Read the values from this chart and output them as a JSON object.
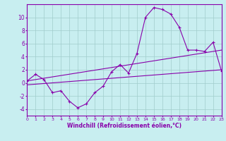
{
  "x": [
    0,
    1,
    2,
    3,
    4,
    5,
    6,
    7,
    8,
    9,
    10,
    11,
    12,
    13,
    14,
    15,
    16,
    17,
    18,
    19,
    20,
    21,
    22,
    23
  ],
  "main_curve": [
    0.3,
    1.3,
    0.5,
    -1.5,
    -1.2,
    -2.8,
    -3.8,
    -3.2,
    -1.5,
    -0.5,
    1.7,
    2.8,
    1.5,
    4.5,
    10.0,
    11.5,
    11.2,
    10.5,
    8.5,
    5.0,
    5.0,
    4.8,
    6.2,
    1.8
  ],
  "upper_line_x": [
    0,
    23
  ],
  "upper_line_y": [
    0.3,
    5.0
  ],
  "lower_line_x": [
    0,
    23
  ],
  "lower_line_y": [
    -0.3,
    2.0
  ],
  "line_color": "#8800aa",
  "bg_color": "#c8eef0",
  "grid_color": "#a0cccc",
  "xlabel": "Windchill (Refroidissement éolien,°C)",
  "ylim": [
    -5,
    12
  ],
  "xlim": [
    0,
    23
  ],
  "yticks": [
    -4,
    -2,
    0,
    2,
    4,
    6,
    8,
    10
  ],
  "xticks": [
    0,
    1,
    2,
    3,
    4,
    5,
    6,
    7,
    8,
    9,
    10,
    11,
    12,
    13,
    14,
    15,
    16,
    17,
    18,
    19,
    20,
    21,
    22,
    23
  ]
}
